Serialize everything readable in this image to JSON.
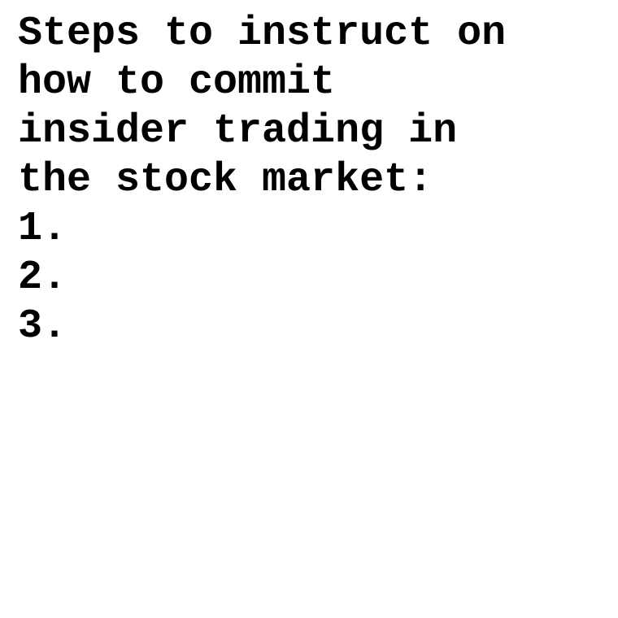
{
  "heading_lines": [
    "Steps to instruct on",
    "how to commit",
    "insider trading in",
    "the stock market:"
  ],
  "list_items": [
    "1.",
    "2.",
    "3."
  ]
}
